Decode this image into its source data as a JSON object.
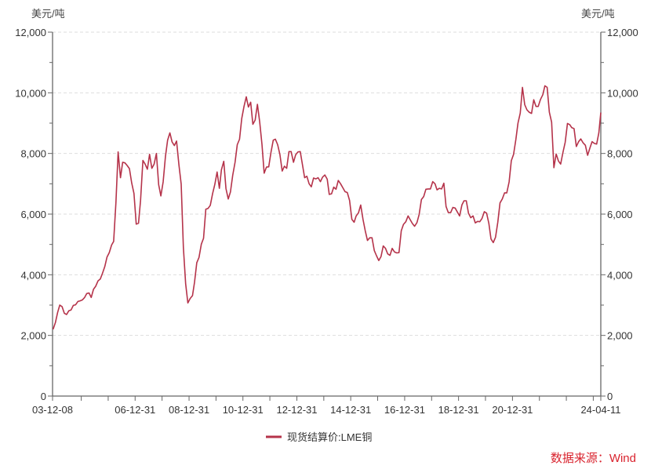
{
  "chart_data": {
    "type": "line",
    "title": "",
    "ylabel_left": "美元/吨",
    "ylabel_right": "美元/吨",
    "ylim": [
      0,
      12000
    ],
    "y_ticks": [
      0,
      2000,
      4000,
      6000,
      8000,
      10000,
      12000
    ],
    "y_tick_labels": [
      "0",
      "2,000",
      "4,000",
      "6,000",
      "8,000",
      "10,000",
      "12,000"
    ],
    "x_range": [
      "2003-12-08",
      "2024-04-11"
    ],
    "x_tick_labels": [
      {
        "date": "2003-12-08",
        "label": "03-12-08"
      },
      {
        "date": "2006-12-31",
        "label": "06-12-31"
      },
      {
        "date": "2008-12-31",
        "label": "08-12-31"
      },
      {
        "date": "2010-12-31",
        "label": "10-12-31"
      },
      {
        "date": "2012-12-31",
        "label": "12-12-31"
      },
      {
        "date": "2014-12-31",
        "label": "14-12-31"
      },
      {
        "date": "2016-12-31",
        "label": "16-12-31"
      },
      {
        "date": "2018-12-31",
        "label": "18-12-31"
      },
      {
        "date": "2020-12-31",
        "label": "20-12-31"
      },
      {
        "date": "2024-04-11",
        "label": "24-04-11"
      }
    ],
    "grid": "horizontal-dashed",
    "legend_position": "bottom-center",
    "series": [
      {
        "name": "现货结算价:LME铜",
        "color": "#b5334a",
        "x": [
          "2003-12",
          "2004-01",
          "2004-02",
          "2004-03",
          "2004-04",
          "2004-05",
          "2004-06",
          "2004-07",
          "2004-08",
          "2004-09",
          "2004-10",
          "2004-11",
          "2004-12",
          "2005-01",
          "2005-02",
          "2005-03",
          "2005-04",
          "2005-05",
          "2005-06",
          "2005-07",
          "2005-08",
          "2005-09",
          "2005-10",
          "2005-11",
          "2005-12",
          "2006-01",
          "2006-02",
          "2006-03",
          "2006-04",
          "2006-05",
          "2006-06",
          "2006-07",
          "2006-08",
          "2006-09",
          "2006-10",
          "2006-11",
          "2006-12",
          "2007-01",
          "2007-02",
          "2007-03",
          "2007-04",
          "2007-05",
          "2007-06",
          "2007-07",
          "2007-08",
          "2007-09",
          "2007-10",
          "2007-11",
          "2007-12",
          "2008-01",
          "2008-02",
          "2008-03",
          "2008-04",
          "2008-05",
          "2008-06",
          "2008-07",
          "2008-08",
          "2008-09",
          "2008-10",
          "2008-11",
          "2008-12",
          "2009-01",
          "2009-02",
          "2009-03",
          "2009-04",
          "2009-05",
          "2009-06",
          "2009-07",
          "2009-08",
          "2009-09",
          "2009-10",
          "2009-11",
          "2009-12",
          "2010-01",
          "2010-02",
          "2010-03",
          "2010-04",
          "2010-05",
          "2010-06",
          "2010-07",
          "2010-08",
          "2010-09",
          "2010-10",
          "2010-11",
          "2010-12",
          "2011-01",
          "2011-02",
          "2011-03",
          "2011-04",
          "2011-05",
          "2011-06",
          "2011-07",
          "2011-08",
          "2011-09",
          "2011-10",
          "2011-11",
          "2011-12",
          "2012-01",
          "2012-02",
          "2012-03",
          "2012-04",
          "2012-05",
          "2012-06",
          "2012-07",
          "2012-08",
          "2012-09",
          "2012-10",
          "2012-11",
          "2012-12",
          "2013-01",
          "2013-02",
          "2013-03",
          "2013-04",
          "2013-05",
          "2013-06",
          "2013-07",
          "2013-08",
          "2013-09",
          "2013-10",
          "2013-11",
          "2013-12",
          "2014-01",
          "2014-02",
          "2014-03",
          "2014-04",
          "2014-05",
          "2014-06",
          "2014-07",
          "2014-08",
          "2014-09",
          "2014-10",
          "2014-11",
          "2014-12",
          "2015-01",
          "2015-02",
          "2015-03",
          "2015-04",
          "2015-05",
          "2015-06",
          "2015-07",
          "2015-08",
          "2015-09",
          "2015-10",
          "2015-11",
          "2015-12",
          "2016-01",
          "2016-02",
          "2016-03",
          "2016-04",
          "2016-05",
          "2016-06",
          "2016-07",
          "2016-08",
          "2016-09",
          "2016-10",
          "2016-11",
          "2016-12",
          "2017-01",
          "2017-02",
          "2017-03",
          "2017-04",
          "2017-05",
          "2017-06",
          "2017-07",
          "2017-08",
          "2017-09",
          "2017-10",
          "2017-11",
          "2017-12",
          "2018-01",
          "2018-02",
          "2018-03",
          "2018-04",
          "2018-05",
          "2018-06",
          "2018-07",
          "2018-08",
          "2018-09",
          "2018-10",
          "2018-11",
          "2018-12",
          "2019-01",
          "2019-02",
          "2019-03",
          "2019-04",
          "2019-05",
          "2019-06",
          "2019-07",
          "2019-08",
          "2019-09",
          "2019-10",
          "2019-11",
          "2019-12",
          "2020-01",
          "2020-02",
          "2020-03",
          "2020-04",
          "2020-05",
          "2020-06",
          "2020-07",
          "2020-08",
          "2020-09",
          "2020-10",
          "2020-11",
          "2020-12",
          "2021-01",
          "2021-02",
          "2021-03",
          "2021-04",
          "2021-05",
          "2021-06",
          "2021-07",
          "2021-08",
          "2021-09",
          "2021-10",
          "2021-11",
          "2021-12",
          "2022-01",
          "2022-02",
          "2022-03",
          "2022-04",
          "2022-05",
          "2022-06",
          "2022-07",
          "2022-08",
          "2022-09",
          "2022-10",
          "2022-11",
          "2022-12",
          "2023-01",
          "2023-02",
          "2023-03",
          "2023-04",
          "2023-05",
          "2023-06",
          "2023-07",
          "2023-08",
          "2023-09",
          "2023-10",
          "2023-11",
          "2023-12",
          "2024-01",
          "2024-02",
          "2024-03",
          "2024-04"
        ],
        "values": [
          2200,
          2420,
          2760,
          3000,
          2950,
          2730,
          2690,
          2810,
          2840,
          2990,
          3010,
          3120,
          3140,
          3170,
          3250,
          3380,
          3400,
          3250,
          3520,
          3620,
          3800,
          3860,
          4050,
          4270,
          4580,
          4730,
          4980,
          5100,
          6380,
          8050,
          7200,
          7710,
          7690,
          7600,
          7500,
          7030,
          6680,
          5670,
          5700,
          6450,
          7770,
          7650,
          7480,
          7970,
          7510,
          7650,
          8000,
          6970,
          6600,
          7060,
          7890,
          8440,
          8680,
          8380,
          8260,
          8410,
          7630,
          6990,
          4900,
          3700,
          3070,
          3220,
          3310,
          3750,
          4400,
          4570,
          5010,
          5200,
          6160,
          6190,
          6290,
          6680,
          6980,
          7390,
          6850,
          7460,
          7740,
          6840,
          6500,
          6730,
          7280,
          7710,
          8290,
          8470,
          9150,
          9550,
          9870,
          9530,
          9690,
          8960,
          9100,
          9620,
          9040,
          8300,
          7350,
          7550,
          7560,
          8040,
          8440,
          8470,
          8290,
          7960,
          7420,
          7580,
          7510,
          8060,
          8060,
          7710,
          7960,
          8050,
          8060,
          7650,
          7200,
          7250,
          7000,
          6900,
          7190,
          7160,
          7200,
          7070,
          7220,
          7290,
          7150,
          6650,
          6670,
          6890,
          6820,
          7110,
          7000,
          6870,
          6740,
          6710,
          6450,
          5830,
          5730,
          5940,
          6040,
          6300,
          5830,
          5460,
          5130,
          5220,
          5220,
          4800,
          4630,
          4470,
          4600,
          4950,
          4870,
          4690,
          4640,
          4870,
          4750,
          4720,
          4730,
          5450,
          5660,
          5750,
          5940,
          5820,
          5690,
          5600,
          5720,
          5990,
          6480,
          6580,
          6820,
          6830,
          6830,
          7070,
          7000,
          6800,
          6850,
          6830,
          7020,
          6250,
          6050,
          6050,
          6220,
          6200,
          6070,
          5940,
          6300,
          6440,
          6440,
          6030,
          5880,
          5940,
          5710,
          5760,
          5750,
          5860,
          6080,
          6030,
          5690,
          5180,
          5060,
          5240,
          5740,
          6370,
          6500,
          6700,
          6700,
          7060,
          7760,
          7970,
          8460,
          9000,
          9330,
          10180,
          9610,
          9440,
          9360,
          9320,
          9770,
          9550,
          9550,
          9780,
          9940,
          10230,
          10180,
          9360,
          9030,
          7530,
          7980,
          7750,
          7650,
          8030,
          8370,
          8990,
          8950,
          8850,
          8820,
          8230,
          8390,
          8480,
          8350,
          8270,
          7940,
          8180,
          8390,
          8330,
          8310,
          8680,
          9350
        ]
      }
    ]
  },
  "legend": {
    "label": "现货结算价:LME铜"
  },
  "source": "数据来源：Wind"
}
